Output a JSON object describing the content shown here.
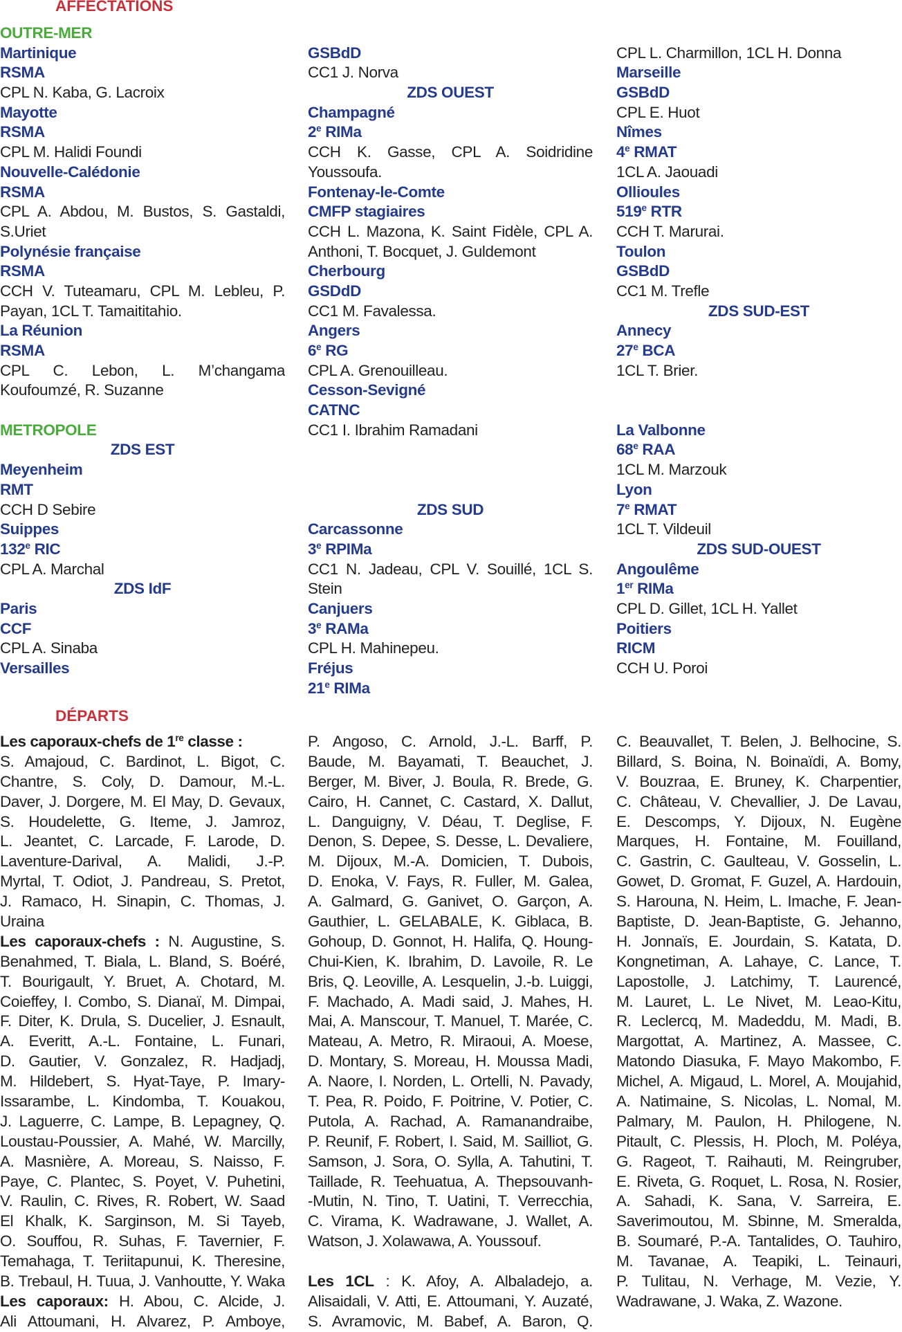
{
  "affectations_title": "AFFECTATIONS",
  "departs_title": "DÉPARTS",
  "affectations": [
    [
      {
        "t": "OUTRE-MER",
        "s": "green"
      },
      {
        "t": "Martinique",
        "s": "navy"
      },
      {
        "t": "RSMA",
        "s": "navy"
      },
      {
        "t": "CPL N. Kaba, G. Lacroix"
      },
      {
        "t": "Mayotte",
        "s": "navy"
      },
      {
        "t": "RSMA",
        "s": "navy"
      },
      {
        "t": "CPL M. Halidi Foundi"
      },
      {
        "t": "Nouvelle-Calédonie",
        "s": "navy"
      },
      {
        "t": "RSMA",
        "s": "navy"
      },
      {
        "t": "CPL A. Abdou, M. Bustos, S. Gastaldi,",
        "j": true
      },
      {
        "t": "S.Uriet"
      },
      {
        "t": "Polynésie française",
        "s": "navy"
      },
      {
        "t": "RSMA",
        "s": "navy"
      },
      {
        "t": "CCH V. Tuteamaru, CPL M. Lebleu, P.",
        "j": true
      },
      {
        "t": "Payan, 1CL T. Tamaititahio."
      },
      {
        "t": "La Réunion",
        "s": "navy"
      },
      {
        "t": "RSMA",
        "s": "navy"
      },
      {
        "t": "CPL C. Lebon, L. M’changama",
        "j": true
      },
      {
        "t": "Koufoumzé, R. Suzanne"
      },
      {
        "t": "",
        "s": "gap"
      },
      {
        "t": "METROPOLE",
        "s": "green"
      },
      {
        "t": "ZDS EST",
        "s": "navy-center"
      },
      {
        "t": "Meyenheim",
        "s": "navy"
      },
      {
        "t": "RMT",
        "s": "navy"
      },
      {
        "t": "CCH D Sebire"
      },
      {
        "t": "Suippes",
        "s": "navy"
      },
      {
        "t": "132",
        "sup": "e",
        "r": " RIC",
        "s": "navy"
      },
      {
        "t": "CPL A. Marchal"
      },
      {
        "t": "ZDS IdF",
        "s": "navy-center"
      },
      {
        "t": "Paris",
        "s": "navy"
      },
      {
        "t": "CCF",
        "s": "navy"
      },
      {
        "t": "CPL A. Sinaba"
      },
      {
        "t": "Versailles",
        "s": "navy"
      }
    ],
    [
      {
        "t": "",
        "s": "gap"
      },
      {
        "t": "GSBdD",
        "s": "navy"
      },
      {
        "t": "CC1 J. Norva"
      },
      {
        "t": "ZDS OUEST",
        "s": "navy-center"
      },
      {
        "t": "Champagné",
        "s": "navy"
      },
      {
        "t": "2",
        "sup": "e",
        "r": " RIMa",
        "s": "navy"
      },
      {
        "t": "CCH K. Gasse, CPL A. Soidridine",
        "j": true
      },
      {
        "t": "Youssoufa."
      },
      {
        "t": "Fontenay-le-Comte",
        "s": "navy"
      },
      {
        "t": "CMFP stagiaires",
        "s": "navy"
      },
      {
        "t": "CCH L. Mazona, K. Saint Fidèle, CPL A.",
        "j": true
      },
      {
        "t": "Anthoni, T. Bocquet, J. Guldemont"
      },
      {
        "t": "Cherbourg",
        "s": "navy"
      },
      {
        "t": "GSDdD",
        "s": "navy"
      },
      {
        "t": "CC1 M. Favalessa."
      },
      {
        "t": "Angers",
        "s": "navy"
      },
      {
        "t": "6",
        "sup": "e",
        "r": " RG",
        "s": "navy"
      },
      {
        "t": "CPL A. Grenouilleau."
      },
      {
        "t": "Cesson-Sevigné",
        "s": "navy"
      },
      {
        "t": "CATNC",
        "s": "navy"
      },
      {
        "t": "CC1 I. Ibrahim Ramadani"
      },
      {
        "t": "",
        "s": "gap"
      },
      {
        "t": "",
        "s": "gap"
      },
      {
        "t": "",
        "s": "gap"
      },
      {
        "t": "ZDS SUD",
        "s": "navy-center"
      },
      {
        "t": "Carcassonne",
        "s": "navy"
      },
      {
        "t": "3",
        "sup": "e",
        "r": " RPIMa",
        "s": "navy"
      },
      {
        "t": "CC1 N. Jadeau, CPL V. Souillé, 1CL S.",
        "j": true
      },
      {
        "t": "Stein"
      },
      {
        "t": "Canjuers",
        "s": "navy"
      },
      {
        "t": "3",
        "sup": "e",
        "r": " RAMa",
        "s": "navy"
      },
      {
        "t": "CPL H. Mahinepeu."
      },
      {
        "t": "Fréjus",
        "s": "navy"
      },
      {
        "t": "21",
        "sup": "e",
        "r": " RIMa",
        "s": "navy"
      }
    ],
    [
      {
        "t": "",
        "s": "gap"
      },
      {
        "t": "CPL L. Charmillon, 1CL H. Donna"
      },
      {
        "t": "Marseille",
        "s": "navy"
      },
      {
        "t": "GSBdD",
        "s": "navy"
      },
      {
        "t": "CPL E. Huot"
      },
      {
        "t": "Nîmes",
        "s": "navy"
      },
      {
        "t": "4",
        "sup": "e",
        "r": " RMAT",
        "s": "navy"
      },
      {
        "t": "1CL A. Jaouadi"
      },
      {
        "t": "Ollioules",
        "s": "navy"
      },
      {
        "t": "519",
        "sup": "e",
        "r": " RTR",
        "s": "navy"
      },
      {
        "t": "CCH T. Marurai."
      },
      {
        "t": "Toulon",
        "s": "navy"
      },
      {
        "t": "GSBdD",
        "s": "navy"
      },
      {
        "t": "CC1 M. Trefle"
      },
      {
        "t": "ZDS SUD-EST",
        "s": "navy-center"
      },
      {
        "t": "Annecy",
        "s": "navy"
      },
      {
        "t": "27",
        "sup": "e",
        "r": " BCA",
        "s": "navy"
      },
      {
        "t": "1CL T. Brier."
      },
      {
        "t": "",
        "s": "gap"
      },
      {
        "t": "",
        "s": "gap"
      },
      {
        "t": "La Valbonne",
        "s": "navy"
      },
      {
        "t": "68",
        "sup": "e",
        "r": " RAA",
        "s": "navy"
      },
      {
        "t": "1CL M. Marzouk"
      },
      {
        "t": "Lyon",
        "s": "navy"
      },
      {
        "t": "7",
        "sup": "e",
        "r": " RMAT",
        "s": "navy"
      },
      {
        "t": "1CL T. Vildeuil"
      },
      {
        "t": "ZDS SUD-OUEST",
        "s": "navy-center"
      },
      {
        "t": "Angoulême",
        "s": "navy"
      },
      {
        "t": "1",
        "sup": "er",
        "r": " RIMa",
        "s": "navy"
      },
      {
        "t": "CPL D. Gillet, 1CL H. Yallet"
      },
      {
        "t": "Poitiers",
        "s": "navy"
      },
      {
        "t": "RICM",
        "s": "navy"
      },
      {
        "t": "CCH U. Poroi"
      }
    ]
  ],
  "departs": [
    [
      {
        "b": "Les caporaux-chefs de 1",
        "bsup": "re",
        "br": " classe :",
        "t": ""
      },
      {
        "t": "S. Amajoud, C. Bardinot, L. Bigot, C.",
        "j": true
      },
      {
        "t": "Chantre, S. Coly, D. Damour, M.-L.",
        "j": true
      },
      {
        "t": "Daver, J. Dorgere, M. El May, D. Gevaux,",
        "j": true
      },
      {
        "t": "S. Houdelette, G. Iteme, J. Jamroz,",
        "j": true
      },
      {
        "t": "L. Jeantet, C. Larcade, F. Larode, D.",
        "j": true
      },
      {
        "t": "Laventure-Darival, A. Malidi, J.-P.",
        "j": true
      },
      {
        "t": "Myrtal, T. Odiot, J. Pandreau, S. Pretot,",
        "j": true
      },
      {
        "t": "J. Ramaco, H. Sinapin, C. Thomas, J.",
        "j": true
      },
      {
        "t": "Uraina"
      },
      {
        "b": "Les caporaux-chefs :",
        "t": " N. Augustine, S.",
        "j": true
      },
      {
        "t": "Benahmed, T. Biala, L. Bland, S. Boéré,",
        "j": true
      },
      {
        "t": "T. Bourigault, Y. Bruet, A. Chotard, M.",
        "j": true
      },
      {
        "t": "Coieffey, I. Combo, S. Dianaï, M. Dimpai,",
        "j": true
      },
      {
        "t": "F. Diter, K. Drula, S. Ducelier, J. Esnault,",
        "j": true
      },
      {
        "t": "A. Everitt, A.-L. Fontaine, L. Funari,",
        "j": true
      },
      {
        "t": "D. Gautier, V. Gonzalez, R. Hadjadj,",
        "j": true
      },
      {
        "t": "M. Hildebert, S. Hyat-Taye, P. Imary-",
        "j": true
      },
      {
        "t": "Issarambe, L. Kindomba, T. Kouakou,",
        "j": true
      },
      {
        "t": "J. Laguerre, C. Lampe, B. Lepagney, Q.",
        "j": true
      },
      {
        "t": "Loustau-Poussier, A. Mahé, W. Marcilly,",
        "j": true
      },
      {
        "t": "A. Masnière, A. Moreau, S. Naisso, F.",
        "j": true
      },
      {
        "t": "Paye, C. Plantec, S. Poyet, V. Puhetini,",
        "j": true
      },
      {
        "t": "V. Raulin, C. Rives, R. Robert, W. Saad",
        "j": true
      },
      {
        "t": "El Khalk, K. Sarginson, M. Si Tayeb,",
        "j": true
      },
      {
        "t": "O. Souffou, R. Suhas, F. Tavernier, F.",
        "j": true
      },
      {
        "t": "Temahaga, T. Teriitapunui, K. Theresine,",
        "j": true
      },
      {
        "t": "B. Trebaul, H. Tuua, J. Vanhoutte, Y. Waka",
        "j": true
      },
      {
        "b": "Les caporaux:",
        "t": " H. Abou, C. Alcide, J.",
        "j": true
      },
      {
        "t": "Ali Attoumani, H. Alvarez, P. Amboye,",
        "j": true
      }
    ],
    [
      {
        "t": "P. Angoso, C. Arnold, J.-L. Barff, P.",
        "j": true
      },
      {
        "t": "Baude, M. Bayamati, T. Beauchet, J.",
        "j": true
      },
      {
        "t": "Berger, M. Biver, J. Boula, R. Brede, G.",
        "j": true
      },
      {
        "t": "Cairo, H. Cannet, C. Castard, X. Dallut,",
        "j": true
      },
      {
        "t": "L. Danguigny, V. Déau, T. Deglise, F.",
        "j": true
      },
      {
        "t": "Denon, S. Depee, S. Desse, L. Devaliere,",
        "j": true
      },
      {
        "t": "M. Dijoux, M.-A. Domicien, T. Dubois,",
        "j": true
      },
      {
        "t": "D. Enoka, V. Fays, R. Fuller, M. Galea,",
        "j": true
      },
      {
        "t": "A. Galmard, G. Ganivet, O. Garçon, A.",
        "j": true
      },
      {
        "t": "Gauthier, L. GELABALE, K. Giblaca, B.",
        "j": true
      },
      {
        "t": "Gohoup, D. Gonnot, H. Halifa, Q. Houng-",
        "j": true
      },
      {
        "t": "Chui-Kien, K. Ibrahim, D. Lavoile, R. Le",
        "j": true
      },
      {
        "t": "Bris, Q. Leoville, A. Lesquelin, J.-b. Luiggi,",
        "j": true
      },
      {
        "t": "F. Machado, A. Madi said, J. Mahes, H.",
        "j": true
      },
      {
        "t": "Mai, A. Manscour, T. Manuel, T. Marée, C.",
        "j": true
      },
      {
        "t": "Mateau, A. Metro, R. Miraoui, A. Moese,",
        "j": true
      },
      {
        "t": "D. Montary, S. Moreau, H. Moussa Madi,",
        "j": true
      },
      {
        "t": "A. Naore, I. Norden, L. Ortelli, N. Pavady,",
        "j": true
      },
      {
        "t": "T. Pea, R. Poido, F. Poitrine, V. Potier, C.",
        "j": true
      },
      {
        "t": "Putola, A. Rachad, A. Ramanandraibe,",
        "j": true
      },
      {
        "t": "P. Reunif, F. Robert, I. Said, M. Sailliot, G.",
        "j": true
      },
      {
        "t": "Samson, J. Sora, O. Sylla, A. Tahutini, T.",
        "j": true
      },
      {
        "t": "Taillade, R. Teehuatua, A. Thepsouvanh-",
        "j": true
      },
      {
        "t": "-Mutin, N. Tino, T. Uatini, T. Verrecchia,",
        "j": true
      },
      {
        "t": "C. Virama, K. Wadrawane, J. Wallet, A.",
        "j": true
      },
      {
        "t": "Watson, J. Xolawawa, A. Youssouf."
      },
      {
        "t": "",
        "gap": true
      },
      {
        "b": "Les 1CL",
        "t": " : K. Afoy, A. Albaladejo, a.",
        "j": true
      },
      {
        "t": "Alisaidali, V. Atti, E. Attoumani, Y. Auzaté,",
        "j": true
      },
      {
        "t": "S. Avramovic, M. Babef, A. Baron, Q. Baste,",
        "j": true
      }
    ],
    [
      {
        "t": "C. Beauvallet, T. Belen, J. Belhocine, S.",
        "j": true
      },
      {
        "t": "Billard, S. Boina, N. Boinaïdi, A. Bomy,",
        "j": true
      },
      {
        "t": "V. Bouzraa, E. Bruney, K. Charpentier,",
        "j": true
      },
      {
        "t": "C. Château, V. Chevallier, J. De Lavau,",
        "j": true
      },
      {
        "t": "E. Descomps, Y. Dijoux, N. Eugène",
        "j": true
      },
      {
        "t": "Marques, H. Fontaine, M. Fouilland,",
        "j": true
      },
      {
        "t": "C. Gastrin, C. Gaulteau, V. Gosselin, L.",
        "j": true
      },
      {
        "t": "Gowet, D. Gromat, F. Guzel, A. Hardouin,",
        "j": true
      },
      {
        "t": "S. Harouna, N. Heim, L. Imache, F. Jean-",
        "j": true
      },
      {
        "t": "Baptiste, D. Jean-Baptiste, G. Jehanno,",
        "j": true
      },
      {
        "t": "H. Jonnaïs, E. Jourdain, S. Katata, D.",
        "j": true
      },
      {
        "t": "Kongnetiman, A. Lahaye, C. Lance, T.",
        "j": true
      },
      {
        "t": "Lapostolle, J. Latchimy, T. Laurencé,",
        "j": true
      },
      {
        "t": "M. Lauret, L. Le Nivet, M. Leao-Kitu,",
        "j": true
      },
      {
        "t": "R. Leclercq, M. Madeddu, M. Madi, B.",
        "j": true
      },
      {
        "t": "Margottat, A. Martinez, A. Massee, C.",
        "j": true
      },
      {
        "t": "Matondo Diasuka, F. Mayo Makombo, F.",
        "j": true
      },
      {
        "t": "Michel, A. Migaud, L. Morel, A. Moujahid,",
        "j": true
      },
      {
        "t": "A. Natimaine, S. Nicolas, L. Nomal, M.",
        "j": true
      },
      {
        "t": "Palmary, M. Paulon, H. Philogene, N.",
        "j": true
      },
      {
        "t": "Pitault, C. Plessis, H. Ploch, M. Poléya,",
        "j": true
      },
      {
        "t": "G. Rageot, T. Raihauti, M. Reingruber,",
        "j": true
      },
      {
        "t": "E. Riveta, G. Roquet, L. Rosa, N. Rosier,",
        "j": true
      },
      {
        "t": "A. Sahadi, K. Sana, V. Sarreira, E.",
        "j": true
      },
      {
        "t": "Saverimoutou, M. Sbinne, M. Smeralda,",
        "j": true
      },
      {
        "t": "B. Soumaré, P.-A. Tantalides, O. Tauhiro,",
        "j": true
      },
      {
        "t": "M. Tavanae, A. Teapiki, L. Teinauri,",
        "j": true
      },
      {
        "t": "P. Tulitau, N. Verhage, M. Vezie, Y.",
        "j": true
      },
      {
        "t": "Wadrawane, J. Waka, Z. Wazone."
      }
    ]
  ]
}
